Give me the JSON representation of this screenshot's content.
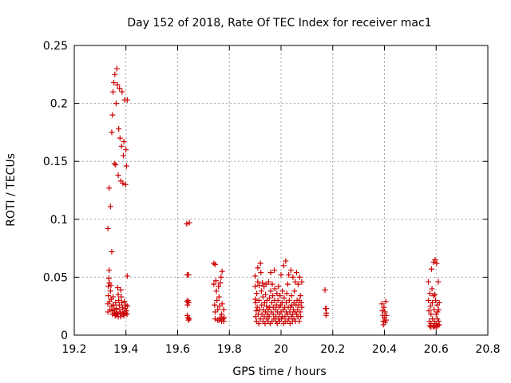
{
  "chart_data": {
    "type": "scatter",
    "title": "Day 152 of 2018, Rate Of TEC Index for receiver mac1",
    "xlabel": "GPS time / hours",
    "ylabel": "ROTI / TECUs",
    "xlim": [
      19.2,
      20.8
    ],
    "ylim": [
      0,
      0.25
    ],
    "x_ticks": [
      19.2,
      19.4,
      19.6,
      19.8,
      20,
      20.2,
      20.4,
      20.6,
      20.8
    ],
    "x_tick_labels": [
      "19.2",
      "19.4",
      "19.6",
      "19.8",
      "20",
      "20.2",
      "20.4",
      "20.6",
      "20.8"
    ],
    "y_ticks": [
      0,
      0.05,
      0.1,
      0.15,
      0.2,
      0.25
    ],
    "y_tick_labels": [
      "0",
      "0.05",
      "0.1",
      "0.15",
      "0.2",
      "0.25"
    ],
    "grid": true,
    "marker": "+",
    "series": [
      {
        "name": "mac1",
        "color": "#cc0000",
        "points": [
          [
            19.33,
            0.092
          ],
          [
            19.335,
            0.127
          ],
          [
            19.34,
            0.111
          ],
          [
            19.345,
            0.072
          ],
          [
            19.345,
            0.175
          ],
          [
            19.348,
            0.19
          ],
          [
            19.35,
            0.21
          ],
          [
            19.353,
            0.218
          ],
          [
            19.355,
            0.148
          ],
          [
            19.357,
            0.225
          ],
          [
            19.36,
            0.147
          ],
          [
            19.362,
            0.2
          ],
          [
            19.365,
            0.23
          ],
          [
            19.367,
            0.216
          ],
          [
            19.37,
            0.138
          ],
          [
            19.372,
            0.178
          ],
          [
            19.375,
            0.213
          ],
          [
            19.377,
            0.17
          ],
          [
            19.38,
            0.133
          ],
          [
            19.383,
            0.163
          ],
          [
            19.385,
            0.21
          ],
          [
            19.388,
            0.131
          ],
          [
            19.39,
            0.155
          ],
          [
            19.392,
            0.167
          ],
          [
            19.395,
            0.203
          ],
          [
            19.398,
            0.13
          ],
          [
            19.4,
            0.16
          ],
          [
            19.402,
            0.146
          ],
          [
            19.405,
            0.203
          ],
          [
            19.33,
            0.02
          ],
          [
            19.33,
            0.027
          ],
          [
            19.332,
            0.034
          ],
          [
            19.332,
            0.042
          ],
          [
            19.334,
            0.049
          ],
          [
            19.335,
            0.056
          ],
          [
            19.336,
            0.045
          ],
          [
            19.337,
            0.029
          ],
          [
            19.338,
            0.022
          ],
          [
            19.34,
            0.038
          ],
          [
            19.342,
            0.043
          ],
          [
            19.343,
            0.031
          ],
          [
            19.345,
            0.025
          ],
          [
            19.346,
            0.021
          ],
          [
            19.348,
            0.018
          ],
          [
            19.35,
            0.033
          ],
          [
            19.352,
            0.026
          ],
          [
            19.354,
            0.022
          ],
          [
            19.356,
            0.019
          ],
          [
            19.358,
            0.017
          ],
          [
            19.36,
            0.028
          ],
          [
            19.362,
            0.023
          ],
          [
            19.364,
            0.02
          ],
          [
            19.366,
            0.018
          ],
          [
            19.368,
            0.041
          ],
          [
            19.37,
            0.035
          ],
          [
            19.372,
            0.03
          ],
          [
            19.374,
            0.026
          ],
          [
            19.376,
            0.022
          ],
          [
            19.378,
            0.019
          ],
          [
            19.38,
            0.039
          ],
          [
            19.382,
            0.033
          ],
          [
            19.384,
            0.028
          ],
          [
            19.386,
            0.024
          ],
          [
            19.388,
            0.02
          ],
          [
            19.39,
            0.018
          ],
          [
            19.392,
            0.017
          ],
          [
            19.394,
            0.029
          ],
          [
            19.396,
            0.023
          ],
          [
            19.398,
            0.019
          ],
          [
            19.4,
            0.026
          ],
          [
            19.402,
            0.021
          ],
          [
            19.404,
            0.018
          ],
          [
            19.405,
            0.051
          ],
          [
            19.406,
            0.025
          ],
          [
            19.36,
            0.017
          ],
          [
            19.37,
            0.016
          ],
          [
            19.38,
            0.016
          ],
          [
            19.635,
            0.096
          ],
          [
            19.645,
            0.097
          ],
          [
            19.637,
            0.052
          ],
          [
            19.642,
            0.052
          ],
          [
            19.636,
            0.029
          ],
          [
            19.638,
            0.026
          ],
          [
            19.64,
            0.03
          ],
          [
            19.643,
            0.028
          ],
          [
            19.637,
            0.017
          ],
          [
            19.64,
            0.015
          ],
          [
            19.642,
            0.013
          ],
          [
            19.645,
            0.014
          ],
          [
            19.74,
            0.062
          ],
          [
            19.745,
            0.061
          ],
          [
            19.74,
            0.044
          ],
          [
            19.743,
            0.026
          ],
          [
            19.745,
            0.02
          ],
          [
            19.745,
            0.014
          ],
          [
            19.748,
            0.047
          ],
          [
            19.75,
            0.038
          ],
          [
            19.752,
            0.03
          ],
          [
            19.755,
            0.022
          ],
          [
            19.755,
            0.013
          ],
          [
            19.758,
            0.042
          ],
          [
            19.76,
            0.033
          ],
          [
            19.762,
            0.025
          ],
          [
            19.765,
            0.045
          ],
          [
            19.765,
            0.015
          ],
          [
            19.768,
            0.05
          ],
          [
            19.77,
            0.018
          ],
          [
            19.772,
            0.055
          ],
          [
            19.772,
            0.027
          ],
          [
            19.775,
            0.014
          ],
          [
            19.778,
            0.012
          ],
          [
            19.778,
            0.022
          ],
          [
            19.78,
            0.015
          ],
          [
            19.76,
            0.013
          ],
          [
            19.77,
            0.012
          ],
          [
            19.9,
            0.031
          ],
          [
            19.9,
            0.051
          ],
          [
            19.9,
            0.042
          ],
          [
            19.902,
            0.028
          ],
          [
            19.902,
            0.016
          ],
          [
            19.904,
            0.021
          ],
          [
            19.905,
            0.012
          ],
          [
            19.906,
            0.036
          ],
          [
            19.908,
            0.024
          ],
          [
            19.91,
            0.058
          ],
          [
            19.91,
            0.046
          ],
          [
            19.912,
            0.018
          ],
          [
            19.914,
            0.01
          ],
          [
            19.915,
            0.03
          ],
          [
            19.916,
            0.043
          ],
          [
            19.918,
            0.022
          ],
          [
            19.92,
            0.062
          ],
          [
            19.92,
            0.014
          ],
          [
            19.922,
            0.054
          ],
          [
            19.924,
            0.038
          ],
          [
            19.925,
            0.026
          ],
          [
            19.926,
            0.018
          ],
          [
            19.928,
            0.045
          ],
          [
            19.93,
            0.012
          ],
          [
            19.93,
            0.033
          ],
          [
            19.932,
            0.022
          ],
          [
            19.934,
            0.042
          ],
          [
            19.935,
            0.016
          ],
          [
            19.936,
            0.028
          ],
          [
            19.938,
            0.01
          ],
          [
            19.94,
            0.035
          ],
          [
            19.94,
            0.02
          ],
          [
            19.942,
            0.044
          ],
          [
            19.944,
            0.025
          ],
          [
            19.945,
            0.014
          ],
          [
            19.946,
            0.03
          ],
          [
            19.948,
            0.018
          ],
          [
            19.95,
            0.012
          ],
          [
            19.95,
            0.022
          ],
          [
            19.952,
            0.046
          ],
          [
            19.954,
            0.016
          ],
          [
            19.955,
            0.032
          ],
          [
            19.956,
            0.024
          ],
          [
            19.958,
            0.01
          ],
          [
            19.96,
            0.054
          ],
          [
            19.96,
            0.038
          ],
          [
            19.962,
            0.02
          ],
          [
            19.964,
            0.028
          ],
          [
            19.965,
            0.012
          ],
          [
            19.966,
            0.044
          ],
          [
            19.968,
            0.034
          ],
          [
            19.97,
            0.018
          ],
          [
            19.97,
            0.024
          ],
          [
            19.972,
            0.014
          ],
          [
            19.974,
            0.056
          ],
          [
            19.975,
            0.03
          ],
          [
            19.976,
            0.04
          ],
          [
            19.978,
            0.022
          ],
          [
            19.98,
            0.012
          ],
          [
            19.98,
            0.016
          ],
          [
            19.982,
            0.026
          ],
          [
            19.984,
            0.036
          ],
          [
            19.985,
            0.01
          ],
          [
            19.986,
            0.02
          ],
          [
            19.988,
            0.03
          ],
          [
            19.99,
            0.014
          ],
          [
            19.99,
            0.042
          ],
          [
            19.992,
            0.024
          ],
          [
            19.994,
            0.018
          ],
          [
            19.995,
            0.012
          ],
          [
            19.996,
            0.034
          ],
          [
            19.998,
            0.026
          ],
          [
            20.0,
            0.02
          ],
          [
            20.0,
            0.052
          ],
          [
            20.002,
            0.014
          ],
          [
            20.004,
            0.028
          ],
          [
            20.005,
            0.038
          ],
          [
            20.006,
            0.016
          ],
          [
            20.008,
            0.022
          ],
          [
            20.01,
            0.01
          ],
          [
            20.01,
            0.06
          ],
          [
            20.012,
            0.032
          ],
          [
            20.014,
            0.024
          ],
          [
            20.015,
            0.016
          ],
          [
            20.016,
            0.012
          ],
          [
            20.018,
            0.064
          ],
          [
            20.02,
            0.02
          ],
          [
            20.02,
            0.028
          ],
          [
            20.022,
            0.036
          ],
          [
            20.024,
            0.012
          ],
          [
            20.025,
            0.018
          ],
          [
            20.026,
            0.044
          ],
          [
            20.028,
            0.024
          ],
          [
            20.03,
            0.014
          ],
          [
            20.03,
            0.052
          ],
          [
            20.032,
            0.03
          ],
          [
            20.034,
            0.02
          ],
          [
            20.035,
            0.01
          ],
          [
            20.036,
            0.024
          ],
          [
            20.038,
            0.056
          ],
          [
            20.04,
            0.016
          ],
          [
            20.04,
            0.034
          ],
          [
            20.042,
            0.026
          ],
          [
            20.044,
            0.012
          ],
          [
            20.045,
            0.018
          ],
          [
            20.046,
            0.05
          ],
          [
            20.048,
            0.022
          ],
          [
            20.05,
            0.028
          ],
          [
            20.05,
            0.014
          ],
          [
            20.052,
            0.038
          ],
          [
            20.054,
            0.02
          ],
          [
            20.055,
            0.046
          ],
          [
            20.056,
            0.012
          ],
          [
            20.058,
            0.026
          ],
          [
            20.06,
            0.018
          ],
          [
            20.06,
            0.054
          ],
          [
            20.062,
            0.03
          ],
          [
            20.064,
            0.022
          ],
          [
            20.065,
            0.016
          ],
          [
            20.066,
            0.044
          ],
          [
            20.068,
            0.026
          ],
          [
            20.07,
            0.012
          ],
          [
            20.07,
            0.03
          ],
          [
            20.072,
            0.05
          ],
          [
            20.074,
            0.02
          ],
          [
            20.075,
            0.034
          ],
          [
            20.076,
            0.016
          ],
          [
            20.078,
            0.028
          ],
          [
            20.08,
            0.024
          ],
          [
            20.08,
            0.046
          ],
          [
            20.17,
            0.039
          ],
          [
            20.172,
            0.023
          ],
          [
            20.175,
            0.023
          ],
          [
            20.175,
            0.019
          ],
          [
            20.174,
            0.017
          ],
          [
            20.39,
            0.027
          ],
          [
            20.392,
            0.021
          ],
          [
            20.394,
            0.017
          ],
          [
            20.395,
            0.012
          ],
          [
            20.396,
            0.009
          ],
          [
            20.398,
            0.024
          ],
          [
            20.4,
            0.015
          ],
          [
            20.402,
            0.02
          ],
          [
            20.403,
            0.011
          ],
          [
            20.405,
            0.029
          ],
          [
            20.406,
            0.013
          ],
          [
            20.408,
            0.017
          ],
          [
            20.57,
            0.046
          ],
          [
            20.57,
            0.03
          ],
          [
            20.572,
            0.021
          ],
          [
            20.574,
            0.012
          ],
          [
            20.575,
            0.008
          ],
          [
            20.576,
            0.036
          ],
          [
            20.578,
            0.025
          ],
          [
            20.58,
            0.018
          ],
          [
            20.58,
            0.01
          ],
          [
            20.582,
            0.057
          ],
          [
            20.584,
            0.04
          ],
          [
            20.585,
            0.028
          ],
          [
            20.586,
            0.014
          ],
          [
            20.588,
            0.008
          ],
          [
            20.59,
            0.063
          ],
          [
            20.59,
            0.034
          ],
          [
            20.592,
            0.022
          ],
          [
            20.594,
            0.012
          ],
          [
            20.595,
            0.008
          ],
          [
            20.596,
            0.065
          ],
          [
            20.598,
            0.03
          ],
          [
            20.6,
            0.018
          ],
          [
            20.6,
            0.01
          ],
          [
            20.602,
            0.062
          ],
          [
            20.604,
            0.026
          ],
          [
            20.605,
            0.014
          ],
          [
            20.606,
            0.008
          ],
          [
            20.608,
            0.046
          ],
          [
            20.61,
            0.022
          ],
          [
            20.61,
            0.012
          ],
          [
            20.612,
            0.028
          ],
          [
            20.612,
            0.009
          ],
          [
            20.58,
            0.007
          ],
          [
            20.59,
            0.007
          ],
          [
            20.6,
            0.007
          ],
          [
            20.595,
            0.035
          ],
          [
            20.605,
            0.02
          ]
        ]
      }
    ]
  }
}
